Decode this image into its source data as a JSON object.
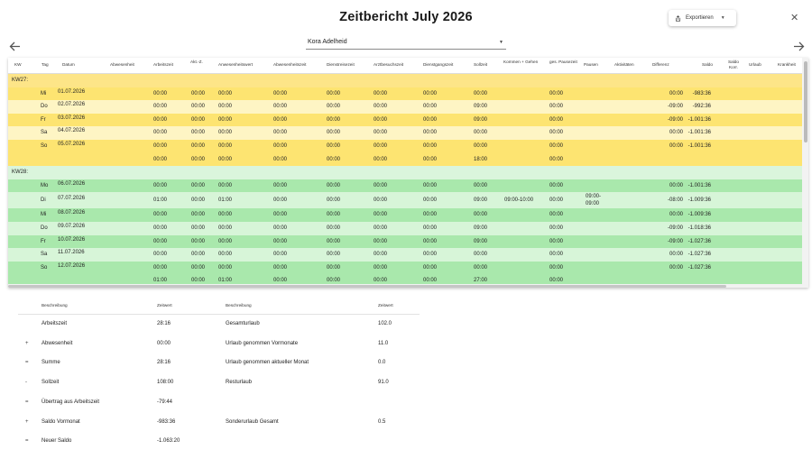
{
  "title": "Zeitbericht July 2026",
  "export": {
    "label": "Exportieren",
    "icon": "export-icon"
  },
  "close_icon": "close-icon",
  "nav": {
    "prev_icon": "arrow-left-icon",
    "next_icon": "arrow-right-icon"
  },
  "person_select": {
    "value": "Kora Adelheid"
  },
  "colors": {
    "kw27_header": "#fde588",
    "kw27_dark": "#fde471",
    "kw27_light": "#fef5c4",
    "kw28_header": "#daf5dc",
    "kw28_dark": "#a9e8ac",
    "kw28_light": "#d7f5d8"
  },
  "columns": [
    "KW",
    "Tag",
    "Datum",
    "Abwesenheit",
    "Arbeitszeit",
    "Akt.-Z.",
    "Anwesenheitswert",
    "Abwesenheitszeit",
    "Dienstreisezeit",
    "Arztbesuchszeit",
    "Dienstgangszeit",
    "Sollzeit",
    "Kommen + Gehen",
    "ges. Pausezeit",
    "Pausen",
    "Aktivitäten",
    "Differenz",
    "Saldo",
    "Saldo Korr.",
    "Urlaub",
    "Krankheit"
  ],
  "weeks": [
    {
      "label": "KW27:",
      "rows": [
        {
          "tag": "Mi",
          "datum": "01.07.2026",
          "arbeitszeit": "00:00",
          "akt": "00:00",
          "anwesenheit": "00:00",
          "abwesenheit": "00:00",
          "dienstreise": "00:00",
          "arztbesuch": "00:00",
          "dienstgang": "00:00",
          "soll": "00:00",
          "kommen": "",
          "pause": "00:00",
          "pausen": "",
          "differenz": "00:00",
          "saldo": "-983:36"
        },
        {
          "tag": "Do",
          "datum": "02.07.2026",
          "arbeitszeit": "00:00",
          "akt": "00:00",
          "anwesenheit": "00:00",
          "abwesenheit": "00:00",
          "dienstreise": "00:00",
          "arztbesuch": "00:00",
          "dienstgang": "00:00",
          "soll": "09:00",
          "kommen": "",
          "pause": "00:00",
          "pausen": "",
          "differenz": "-09:00",
          "saldo": "-992:36"
        },
        {
          "tag": "Fr",
          "datum": "03.07.2026",
          "arbeitszeit": "00:00",
          "akt": "00:00",
          "anwesenheit": "00:00",
          "abwesenheit": "00:00",
          "dienstreise": "00:00",
          "arztbesuch": "00:00",
          "dienstgang": "00:00",
          "soll": "09:00",
          "kommen": "",
          "pause": "00:00",
          "pausen": "",
          "differenz": "-09:00",
          "saldo": "-1.001:36"
        },
        {
          "tag": "Sa",
          "datum": "04.07.2026",
          "arbeitszeit": "00:00",
          "akt": "00:00",
          "anwesenheit": "00:00",
          "abwesenheit": "00:00",
          "dienstreise": "00:00",
          "arztbesuch": "00:00",
          "dienstgang": "00:00",
          "soll": "00:00",
          "kommen": "",
          "pause": "00:00",
          "pausen": "",
          "differenz": "00:00",
          "saldo": "-1.001:36"
        },
        {
          "tag": "So",
          "datum": "05.07.2026",
          "arbeitszeit": "00:00",
          "akt": "00:00",
          "anwesenheit": "00:00",
          "abwesenheit": "00:00",
          "dienstreise": "00:00",
          "arztbesuch": "00:00",
          "dienstgang": "00:00",
          "soll": "00:00",
          "kommen": "",
          "pause": "00:00",
          "pausen": "",
          "differenz": "00:00",
          "saldo": "-1.001:36"
        }
      ],
      "total": {
        "arbeitszeit": "00:00",
        "akt": "00:00",
        "anwesenheit": "00:00",
        "abwesenheit": "00:00",
        "dienstreise": "00:00",
        "arztbesuch": "00:00",
        "dienstgang": "00:00",
        "soll": "18:00",
        "pause": "00:00"
      }
    },
    {
      "label": "KW28:",
      "rows": [
        {
          "tag": "Mo",
          "datum": "06.07.2026",
          "arbeitszeit": "00:00",
          "akt": "00:00",
          "anwesenheit": "00:00",
          "abwesenheit": "00:00",
          "dienstreise": "00:00",
          "arztbesuch": "00:00",
          "dienstgang": "00:00",
          "soll": "00:00",
          "kommen": "",
          "pause": "00:00",
          "pausen": "",
          "differenz": "00:00",
          "saldo": "-1.001:36"
        },
        {
          "tag": "Di",
          "datum": "07.07.2026",
          "arbeitszeit": "01:00",
          "akt": "00:00",
          "anwesenheit": "01:00",
          "abwesenheit": "00:00",
          "dienstreise": "00:00",
          "arztbesuch": "00:00",
          "dienstgang": "00:00",
          "soll": "09:00",
          "kommen": "09:00-10:00",
          "pause": "00:00",
          "pausen": "09:00-\n09:00",
          "differenz": "-08:00",
          "saldo": "-1.009:36"
        },
        {
          "tag": "Mi",
          "datum": "08.07.2026",
          "arbeitszeit": "00:00",
          "akt": "00:00",
          "anwesenheit": "00:00",
          "abwesenheit": "00:00",
          "dienstreise": "00:00",
          "arztbesuch": "00:00",
          "dienstgang": "00:00",
          "soll": "00:00",
          "kommen": "",
          "pause": "00:00",
          "pausen": "",
          "differenz": "00:00",
          "saldo": "-1.009:36"
        },
        {
          "tag": "Do",
          "datum": "09.07.2026",
          "arbeitszeit": "00:00",
          "akt": "00:00",
          "anwesenheit": "00:00",
          "abwesenheit": "00:00",
          "dienstreise": "00:00",
          "arztbesuch": "00:00",
          "dienstgang": "00:00",
          "soll": "09:00",
          "kommen": "",
          "pause": "00:00",
          "pausen": "",
          "differenz": "-09:00",
          "saldo": "-1.018:36"
        },
        {
          "tag": "Fr",
          "datum": "10.07.2026",
          "arbeitszeit": "00:00",
          "akt": "00:00",
          "anwesenheit": "00:00",
          "abwesenheit": "00:00",
          "dienstreise": "00:00",
          "arztbesuch": "00:00",
          "dienstgang": "00:00",
          "soll": "09:00",
          "kommen": "",
          "pause": "00:00",
          "pausen": "",
          "differenz": "-09:00",
          "saldo": "-1.027:36"
        },
        {
          "tag": "Sa",
          "datum": "11.07.2026",
          "arbeitszeit": "00:00",
          "akt": "00:00",
          "anwesenheit": "00:00",
          "abwesenheit": "00:00",
          "dienstreise": "00:00",
          "arztbesuch": "00:00",
          "dienstgang": "00:00",
          "soll": "00:00",
          "kommen": "",
          "pause": "00:00",
          "pausen": "",
          "differenz": "00:00",
          "saldo": "-1.027:36"
        },
        {
          "tag": "So",
          "datum": "12.07.2026",
          "arbeitszeit": "00:00",
          "akt": "00:00",
          "anwesenheit": "00:00",
          "abwesenheit": "00:00",
          "dienstreise": "00:00",
          "arztbesuch": "00:00",
          "dienstgang": "00:00",
          "soll": "00:00",
          "kommen": "",
          "pause": "00:00",
          "pausen": "",
          "differenz": "00:00",
          "saldo": "-1.027:36"
        }
      ],
      "total": {
        "arbeitszeit": "01:00",
        "akt": "00:00",
        "anwesenheit": "01:00",
        "abwesenheit": "00:00",
        "dienstreise": "00:00",
        "arztbesuch": "00:00",
        "dienstgang": "00:00",
        "soll": "27:00",
        "pause": "00:00"
      }
    }
  ],
  "summary_left": {
    "header_desc": "Beschreibung",
    "header_val": "Zeitwert",
    "rows": [
      {
        "op": "",
        "label": "Arbeitszeit",
        "value": "28:16"
      },
      {
        "op": "+",
        "label": "Abwesenheit",
        "value": "00:00"
      },
      {
        "op": "=",
        "label": "Summe",
        "value": "28:16"
      },
      {
        "op": "-",
        "label": "Sollzeit",
        "value": "108:00"
      },
      {
        "op": "=",
        "label": "Übertrag aus Arbeitszeit",
        "value": "-79:44"
      },
      {
        "op": "+",
        "label": "Saldo Vormonat",
        "value": "-983:36"
      },
      {
        "op": "=",
        "label": "Neuer Saldo",
        "value": "-1.063:20"
      }
    ]
  },
  "summary_right": {
    "header_desc": "Beschreibung",
    "header_val": "Zeitwert",
    "rows": [
      {
        "label": "Gesamturlaub",
        "value": "102.0"
      },
      {
        "label": "Urlaub genommen Vormonate",
        "value": "11.0"
      },
      {
        "label": "Urlaub genommen aktueller Monat",
        "value": "0.0"
      },
      {
        "label": "Resturlaub",
        "value": "91.0"
      },
      {
        "label": "",
        "value": ""
      },
      {
        "label": "Sonderurlaub Gesamt",
        "value": "0.5"
      }
    ]
  }
}
